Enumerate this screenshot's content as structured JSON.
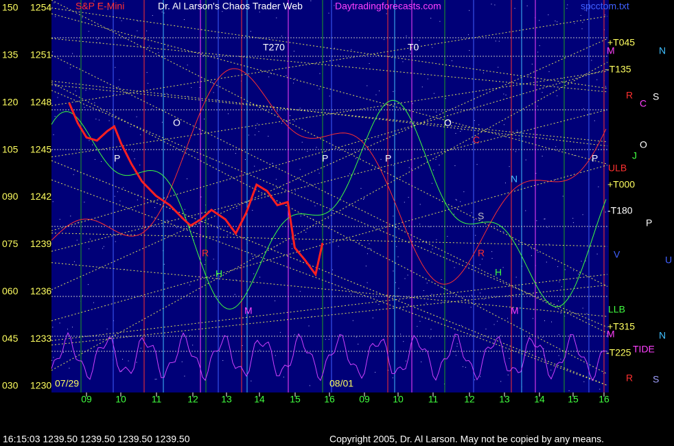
{
  "chart_data": {
    "type": "line",
    "title": "Dr. Al Larson's Chaos Trader Web",
    "subtitle": "S&P E-Mini",
    "site": "Daytradingforecasts.com",
    "file": "spcctom.txt",
    "ylim": [
      1230,
      1254
    ],
    "yticks": [
      1254,
      1251,
      1248,
      1245,
      1242,
      1239,
      1236,
      1233,
      1230
    ],
    "y2lim": [
      30,
      150
    ],
    "y2ticks": [
      150,
      135,
      120,
      105,
      {
        "value": 90,
        "label": "090"
      },
      {
        "value": 75,
        "label": "075"
      },
      {
        "value": 60,
        "label": "060"
      },
      {
        "value": 45,
        "label": "045"
      },
      {
        "value": 30,
        "label": "030"
      }
    ],
    "categories": [
      "09",
      "10",
      "11",
      "12",
      "13",
      "14",
      "15",
      "16",
      "09",
      "10",
      "11",
      "12",
      "13",
      "14",
      "15",
      "16"
    ],
    "dates": [
      "07/29",
      "08/01"
    ],
    "series": [
      {
        "name": "S&P E-Mini",
        "color": "#ff2020",
        "x": [
          8.5,
          8.75,
          9.0,
          9.3,
          9.6,
          9.8,
          10.0,
          10.3,
          10.6,
          11.0,
          11.4,
          11.8,
          12.0,
          12.3,
          12.6,
          13.0,
          13.3,
          13.6,
          13.9,
          14.2,
          14.5,
          14.8,
          15.0,
          15.3,
          15.6,
          15.8
        ],
        "values": [
          1248.0,
          1246.7,
          1245.8,
          1245.6,
          1246.2,
          1246.5,
          1245.4,
          1244.1,
          1243.0,
          1242.1,
          1241.5,
          1240.6,
          1240.2,
          1240.6,
          1241.2,
          1240.6,
          1239.7,
          1241.0,
          1242.8,
          1242.4,
          1241.5,
          1241.7,
          1238.8,
          1238.0,
          1237.1,
          1239.1
        ]
      }
    ],
    "annotations": [
      {
        "text": "T270",
        "color": "#ffffff"
      },
      {
        "text": "T0",
        "color": "#ffffff"
      },
      {
        "text": "+T045",
        "color": "#ffff60"
      },
      {
        "text": "M",
        "color": "#ff40ff"
      },
      {
        "text": "N",
        "color": "#40c0ff"
      },
      {
        "text": "-T135",
        "color": "#ffff60"
      },
      {
        "text": "R",
        "color": "#ff3030"
      },
      {
        "text": "C",
        "color": "#ff40ff"
      },
      {
        "text": "S",
        "color": "#ffffff"
      },
      {
        "text": "O",
        "color": "#ffffff"
      },
      {
        "text": "J",
        "color": "#40ff40"
      },
      {
        "text": "ULB",
        "color": "#ff3030"
      },
      {
        "text": "+T000",
        "color": "#ffff60"
      },
      {
        "text": "-T180",
        "color": "#ffffff"
      },
      {
        "text": "P",
        "color": "#ffffff"
      },
      {
        "text": "V",
        "color": "#4060ff"
      },
      {
        "text": "U",
        "color": "#4060ff"
      },
      {
        "text": "LLB",
        "color": "#40ff40"
      },
      {
        "text": "+T315",
        "color": "#ffff60"
      },
      {
        "text": "M",
        "color": "#ff40ff"
      },
      {
        "text": "N",
        "color": "#40c0ff"
      },
      {
        "text": "-T225",
        "color": "#ffff60"
      },
      {
        "text": "TIDE",
        "color": "#ff40ff"
      },
      {
        "text": "R",
        "color": "#ff3030"
      },
      {
        "text": "S",
        "color": "#a0a0ff"
      },
      {
        "text": "O",
        "color": "#ffffff"
      },
      {
        "text": "O",
        "color": "#ffffff"
      },
      {
        "text": "P",
        "color": "#ffffff"
      },
      {
        "text": "P",
        "color": "#ffffff"
      },
      {
        "text": "P",
        "color": "#ffffff"
      },
      {
        "text": "P",
        "color": "#ffffff"
      },
      {
        "text": "N",
        "color": "#40c0ff"
      },
      {
        "text": "S",
        "color": "#c0c0c0"
      },
      {
        "text": "C",
        "color": "#ff3030"
      },
      {
        "text": "R",
        "color": "#ff3030"
      },
      {
        "text": "R",
        "color": "#ff3030"
      },
      {
        "text": "H",
        "color": "#40ff40"
      },
      {
        "text": "H",
        "color": "#40ff40"
      },
      {
        "text": "M",
        "color": "#ff40ff"
      },
      {
        "text": "M",
        "color": "#ff40ff"
      }
    ],
    "status": "16:15:03  1239.50 1239.50 1239.50 1239.50",
    "copyright": "Copyright 2005, Dr. Al Larson. May not be copied by any means."
  }
}
